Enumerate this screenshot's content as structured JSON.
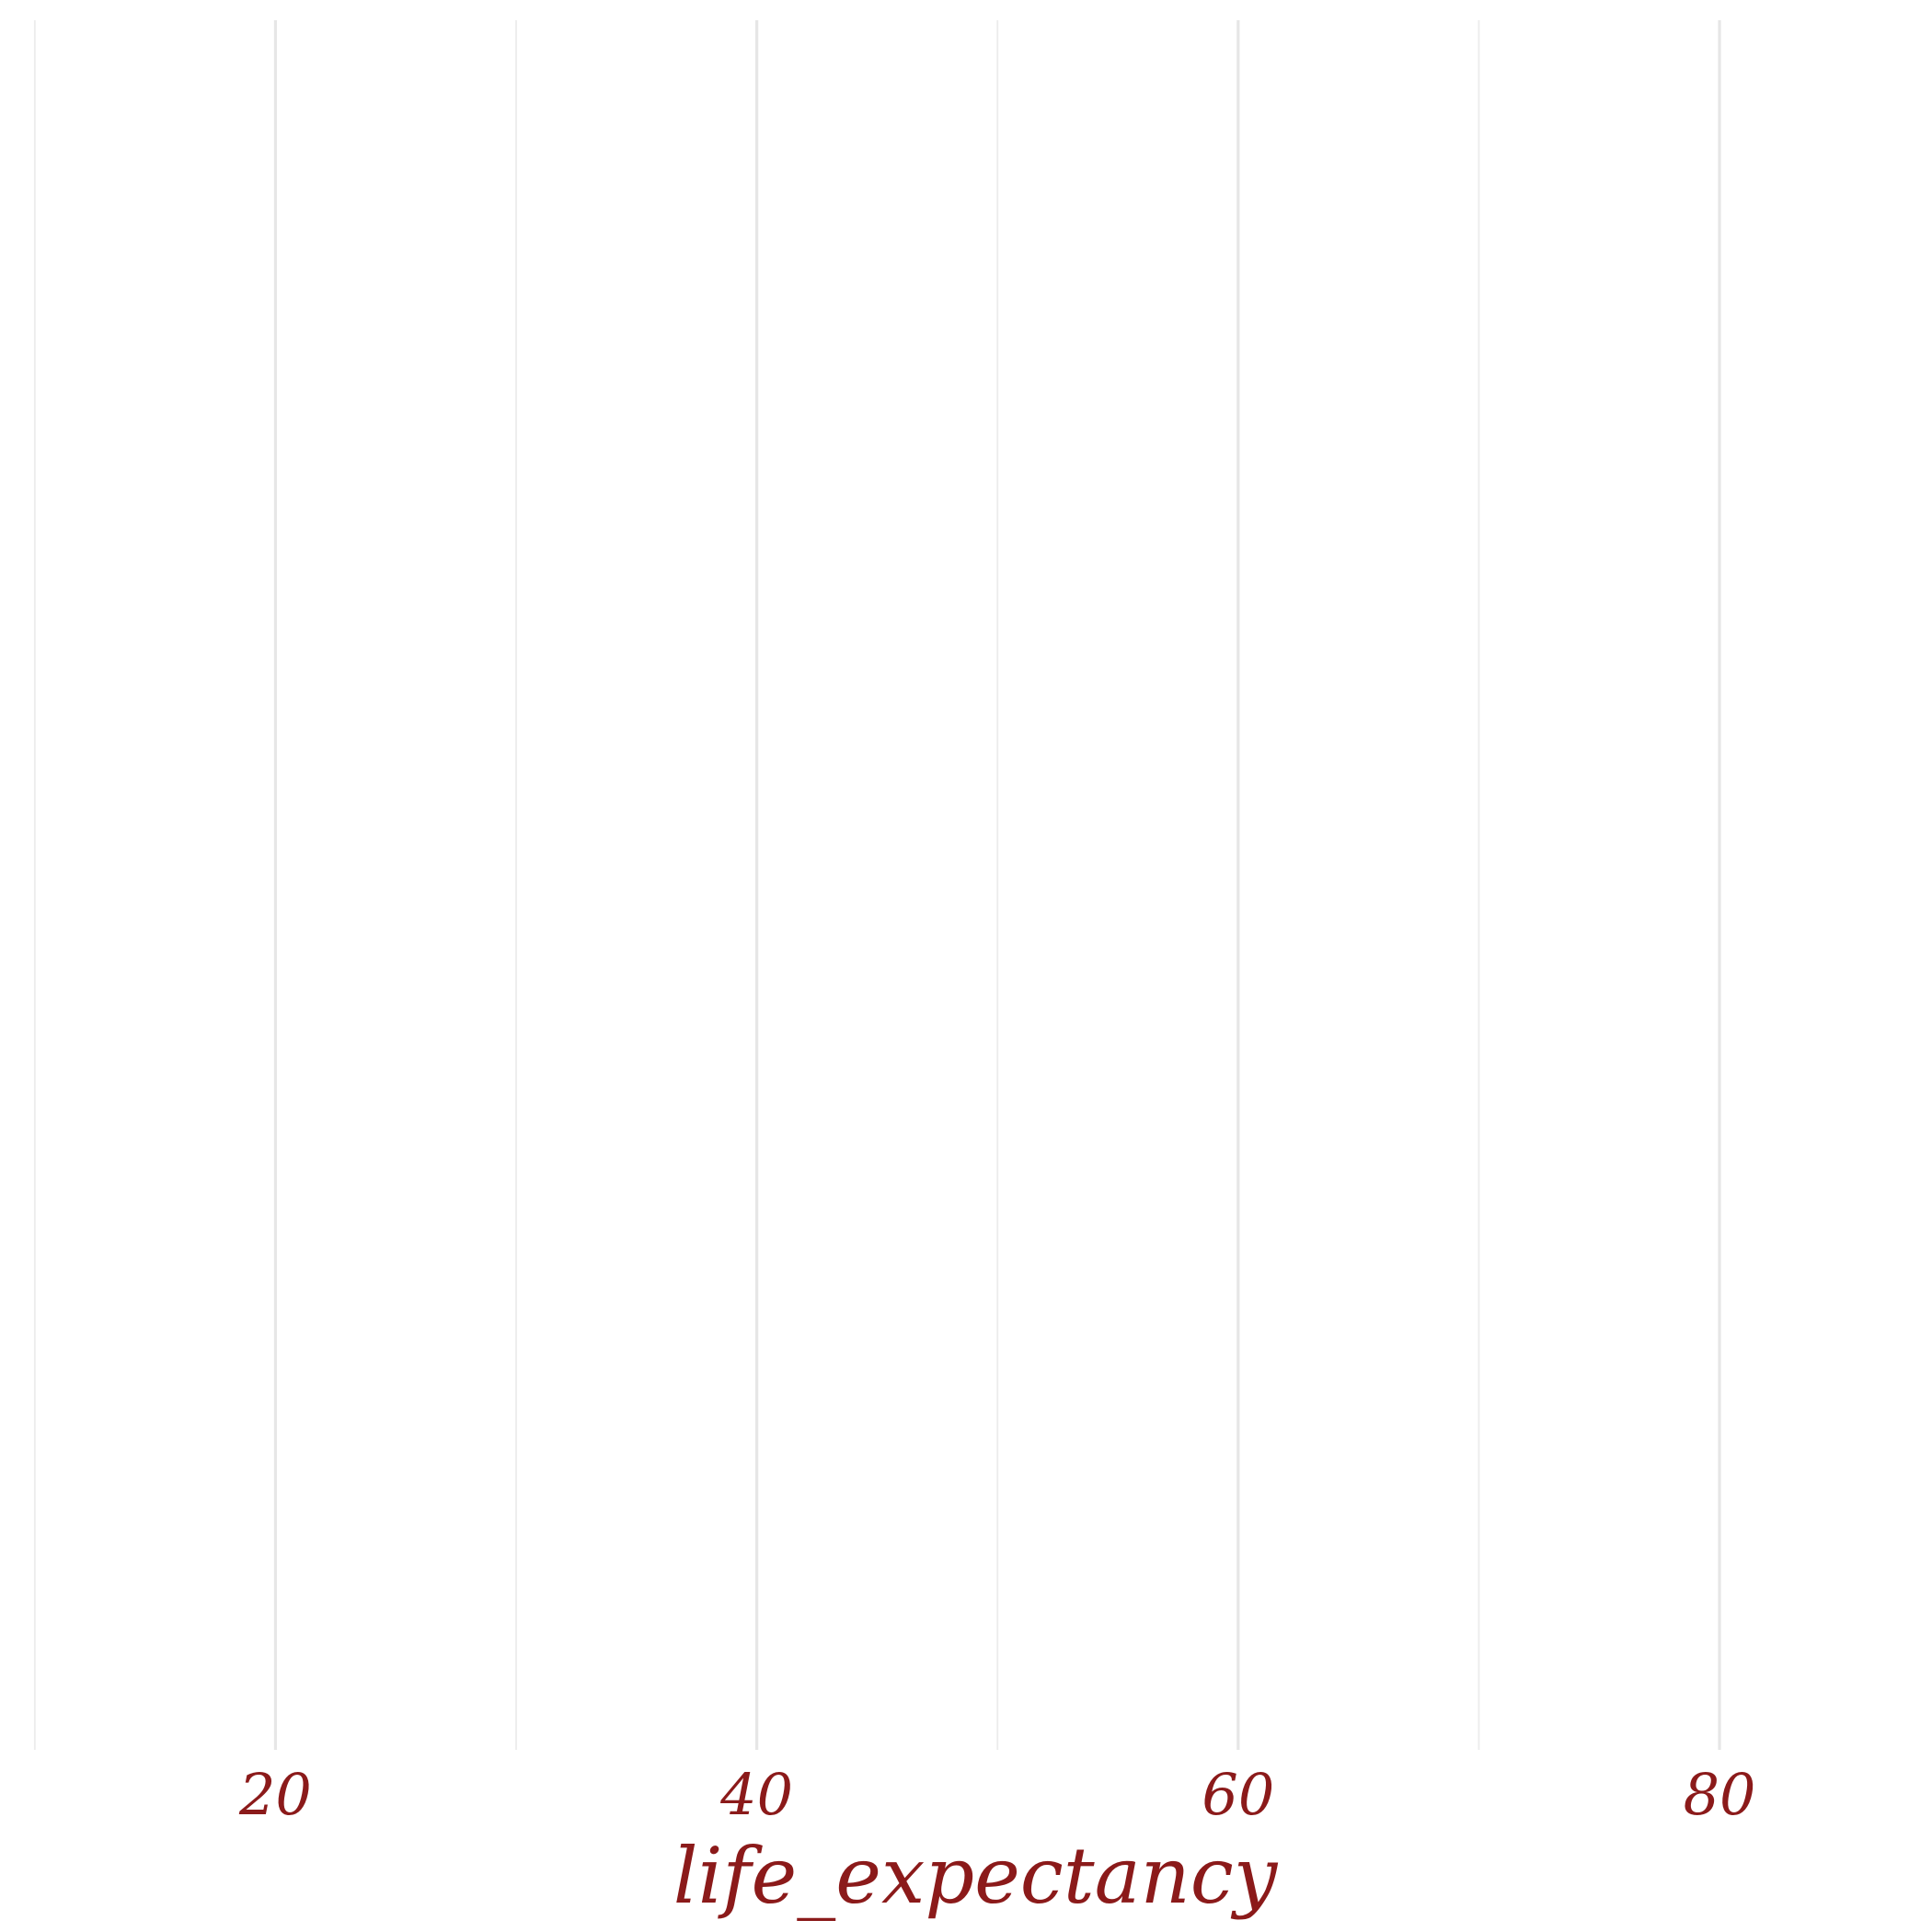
{
  "chart_data": {
    "type": "bar",
    "xlabel": "life_expectancy",
    "ylabel": "",
    "x_ticks": [
      20,
      40,
      60,
      80
    ],
    "x_minor_ticks": [
      10,
      30,
      50,
      70
    ],
    "xlim": [
      9.7,
      88.6
    ],
    "series": [],
    "grid": "vertical",
    "legend": "none",
    "colors": {
      "text": "#8b1a1a",
      "grid": "#e6e6e6",
      "background": "#ffffff"
    }
  }
}
